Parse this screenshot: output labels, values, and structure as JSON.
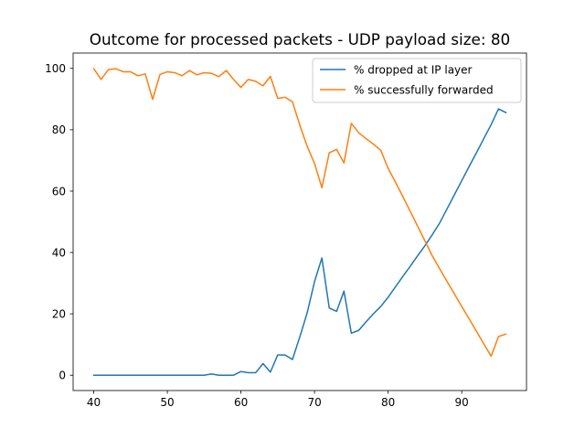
{
  "chart_data": {
    "type": "line",
    "title": "Outcome for processed packets - UDP payload size: 80",
    "xlabel": "",
    "ylabel": "",
    "xlim": [
      37.2,
      98.8
    ],
    "ylim": [
      -5,
      105
    ],
    "xticks": [
      40,
      50,
      60,
      70,
      80,
      90
    ],
    "yticks": [
      0,
      20,
      40,
      60,
      80,
      100
    ],
    "grid": false,
    "legend_position": "top-right",
    "series": [
      {
        "name": "% dropped at IP layer",
        "color": "#1f77b4",
        "x": [
          40,
          41,
          42,
          43,
          44,
          45,
          46,
          47,
          48,
          49,
          50,
          51,
          52,
          53,
          54,
          55,
          56,
          57,
          58,
          59,
          60,
          61,
          62,
          63,
          64,
          65,
          66,
          67,
          68,
          69,
          70,
          71,
          72,
          73,
          74,
          75,
          76,
          77,
          78,
          79,
          80,
          81,
          82,
          83,
          84,
          85,
          86,
          87,
          88,
          89,
          90,
          91,
          92,
          93,
          94,
          95,
          96
        ],
        "y": [
          0,
          0,
          0,
          0,
          0,
          0,
          0,
          0,
          0,
          0,
          0,
          0,
          0,
          0,
          0,
          0,
          0.4,
          0,
          0,
          0,
          1.2,
          0.8,
          0.8,
          3.8,
          1,
          6.6,
          6.6,
          5.1,
          12.5,
          20.3,
          30.5,
          38.2,
          21.9,
          20.8,
          27.4,
          13.7,
          14.6,
          17.4,
          20,
          22.4,
          25.4,
          28.8,
          32.2,
          35.5,
          38.9,
          42.2,
          45.8,
          49.6,
          54.2,
          58.8,
          63.4,
          68,
          72.5,
          77.1,
          81.7,
          86.8,
          85.6
        ]
      },
      {
        "name": "% successfully forwarded",
        "color": "#ff7f0e",
        "x": [
          40,
          41,
          42,
          43,
          44,
          45,
          46,
          47,
          48,
          49,
          50,
          51,
          52,
          53,
          54,
          55,
          56,
          57,
          58,
          59,
          60,
          61,
          62,
          63,
          64,
          65,
          66,
          67,
          68,
          69,
          70,
          71,
          72,
          73,
          74,
          75,
          76,
          77,
          78,
          79,
          80,
          81,
          82,
          83,
          84,
          85,
          86,
          87,
          88,
          89,
          90,
          91,
          92,
          93,
          94,
          95,
          96
        ],
        "y": [
          99.9,
          96.4,
          99.6,
          99.9,
          98.9,
          98.9,
          97.6,
          98.2,
          89.9,
          98,
          98.9,
          98.6,
          97.6,
          99.3,
          97.9,
          98.6,
          98.4,
          97.3,
          99.3,
          96.4,
          93.8,
          96.4,
          95.8,
          94.3,
          97.4,
          90.2,
          90.6,
          89.1,
          81.5,
          74.6,
          69,
          61.1,
          72.5,
          73.6,
          69.2,
          82.1,
          79,
          77.1,
          75.3,
          73.3,
          67.4,
          62.9,
          58.2,
          53.4,
          48.6,
          43.8,
          38.9,
          34.7,
          30.6,
          26.5,
          22.4,
          18.4,
          14.3,
          10.2,
          6.2,
          12.6,
          13.4
        ]
      }
    ]
  }
}
